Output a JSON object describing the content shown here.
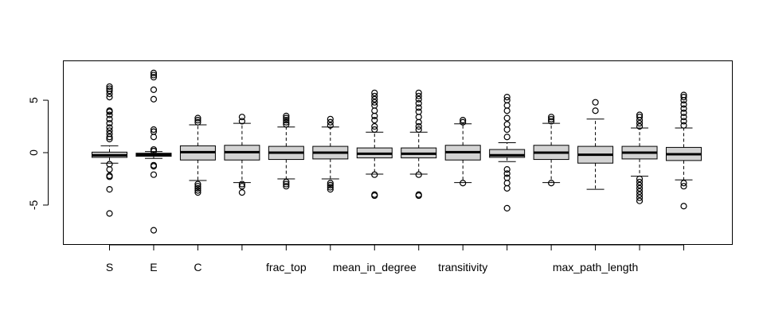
{
  "chart_data": {
    "type": "box",
    "title": "",
    "xlabel": "",
    "ylabel": "",
    "ylim": [
      -8,
      8
    ],
    "y_ticks": [
      -5,
      0,
      5
    ],
    "grid": false,
    "legend": "none",
    "colors": {
      "box_fill": "#d3d3d3",
      "stroke": "#000000",
      "background": "#ffffff"
    },
    "x_tick_labels": [
      {
        "index": 0,
        "label": "S"
      },
      {
        "index": 1,
        "label": "E"
      },
      {
        "index": 2,
        "label": "C"
      },
      {
        "index": 4,
        "label": "frac_top"
      },
      {
        "index": 6,
        "label": "mean_in_degree"
      },
      {
        "index": 8,
        "label": "transitivity"
      },
      {
        "index": 11,
        "label": "max_path_length"
      }
    ],
    "boxes": [
      {
        "q1": -0.45,
        "median": -0.25,
        "q3": 0.05,
        "whisker_low": -1.0,
        "whisker_high": 0.65,
        "outliers": [
          -5.8,
          -3.5,
          -2.3,
          -2.2,
          -1.6,
          -1.1,
          1.3,
          1.5,
          1.8,
          2.1,
          2.4,
          2.8,
          3.2,
          3.6,
          3.9,
          4.0,
          5.3,
          5.6,
          5.9,
          6.1,
          6.3
        ]
      },
      {
        "q1": -0.35,
        "median": -0.2,
        "q3": -0.05,
        "whisker_low": -0.55,
        "whisker_high": 0.1,
        "outliers": [
          -7.4,
          -2.1,
          -1.3,
          -1.2,
          0.15,
          0.3,
          1.5,
          2.0,
          2.2,
          5.1,
          6.0,
          7.2,
          7.4,
          7.6
        ]
      },
      {
        "q1": -0.7,
        "median": 0.05,
        "q3": 0.65,
        "whisker_low": -2.65,
        "whisker_high": 2.65,
        "outliers": [
          -3.8,
          -3.6,
          -3.4,
          -3.2,
          -3.0,
          2.9,
          3.1,
          3.3
        ]
      },
      {
        "q1": -0.7,
        "median": 0.05,
        "q3": 0.7,
        "whisker_low": -2.85,
        "whisker_high": 2.8,
        "outliers": [
          -3.8,
          -3.2,
          -3.0,
          3.0,
          3.4
        ]
      },
      {
        "q1": -0.65,
        "median": 0.0,
        "q3": 0.6,
        "whisker_low": -2.5,
        "whisker_high": 2.45,
        "outliers": [
          -3.2,
          -3.0,
          -2.8,
          2.7,
          2.9,
          3.1,
          3.3,
          3.5
        ]
      },
      {
        "q1": -0.6,
        "median": 0.0,
        "q3": 0.6,
        "whisker_low": -2.5,
        "whisker_high": 2.45,
        "outliers": [
          -3.5,
          -3.3,
          -3.1,
          -2.9,
          2.6,
          2.9,
          3.2
        ]
      },
      {
        "q1": -0.5,
        "median": -0.1,
        "q3": 0.45,
        "whisker_low": -2.05,
        "whisker_high": 1.95,
        "outliers": [
          -4.1,
          -4.0,
          -2.1,
          2.2,
          2.5,
          3.1,
          3.5,
          4.0,
          4.5,
          4.8,
          5.1,
          5.4,
          5.7
        ]
      },
      {
        "q1": -0.5,
        "median": -0.1,
        "q3": 0.45,
        "whisker_low": -2.05,
        "whisker_high": 1.95,
        "outliers": [
          -4.1,
          -4.0,
          -2.1,
          2.2,
          2.5,
          2.9,
          3.4,
          3.9,
          4.3,
          4.7,
          5.1,
          5.4,
          5.7
        ]
      },
      {
        "q1": -0.7,
        "median": 0.05,
        "q3": 0.7,
        "whisker_low": -2.85,
        "whisker_high": 2.75,
        "outliers": [
          -2.9,
          2.9,
          3.1
        ]
      },
      {
        "q1": -0.45,
        "median": -0.25,
        "q3": 0.3,
        "whisker_low": -0.85,
        "whisker_high": 0.95,
        "outliers": [
          -5.3,
          -3.4,
          -2.9,
          -2.4,
          -2.0,
          -1.6,
          1.5,
          2.2,
          2.7,
          3.3,
          4.0,
          4.5,
          5.0,
          5.3
        ]
      },
      {
        "q1": -0.65,
        "median": 0.0,
        "q3": 0.7,
        "whisker_low": -2.85,
        "whisker_high": 2.8,
        "outliers": [
          -2.9,
          3.0,
          3.2,
          3.4
        ]
      },
      {
        "q1": -1.0,
        "median": -0.2,
        "q3": 0.6,
        "whisker_low": -3.5,
        "whisker_high": 3.2,
        "outliers": [
          4.0,
          4.8
        ]
      },
      {
        "q1": -0.6,
        "median": 0.0,
        "q3": 0.6,
        "whisker_low": -2.25,
        "whisker_high": 2.35,
        "outliers": [
          -4.6,
          -4.3,
          -4.0,
          -3.7,
          -3.4,
          -3.1,
          -2.8,
          -2.5,
          2.5,
          2.8,
          3.1,
          3.4,
          3.6
        ]
      },
      {
        "q1": -0.75,
        "median": -0.15,
        "q3": 0.5,
        "whisker_low": -2.6,
        "whisker_high": 2.35,
        "outliers": [
          -5.1,
          -3.2,
          -2.9,
          2.6,
          3.0,
          3.4,
          3.8,
          4.2,
          4.6,
          5.0,
          5.3,
          5.5
        ]
      }
    ]
  }
}
